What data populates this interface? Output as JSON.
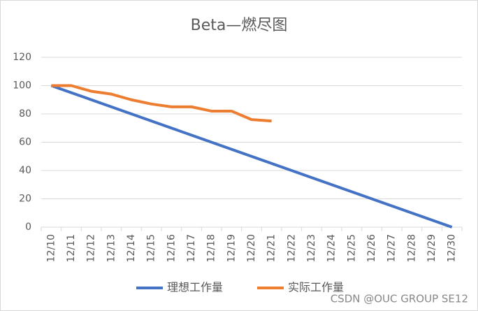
{
  "chart_data": {
    "type": "line",
    "title": "Beta—燃尽图",
    "categories": [
      "12/10",
      "12/11",
      "12/12",
      "12/13",
      "12/14",
      "12/15",
      "12/16",
      "12/17",
      "12/18",
      "12/19",
      "12/20",
      "12/21",
      "12/22",
      "12/23",
      "12/24",
      "12/25",
      "12/26",
      "12/27",
      "12/28",
      "12/29",
      "12/30"
    ],
    "series": [
      {
        "name": "理想工作量",
        "color": "#4472c4",
        "values": [
          100,
          95,
          90,
          85,
          80,
          75,
          70,
          65,
          60,
          55,
          50,
          45,
          40,
          35,
          30,
          25,
          20,
          15,
          10,
          5,
          0
        ]
      },
      {
        "name": "实际工作量",
        "color": "#ed7d31",
        "values": [
          100,
          100,
          96,
          94,
          90,
          87,
          85,
          85,
          82,
          82,
          76,
          75,
          null,
          null,
          null,
          null,
          null,
          null,
          null,
          null,
          null
        ]
      }
    ],
    "ylim": [
      0,
      120
    ],
    "yticks": [
      0,
      20,
      40,
      60,
      80,
      100,
      120
    ],
    "grid": true,
    "legend": "bottom",
    "annotation": "CSDN @OUC GROUP SE12"
  }
}
